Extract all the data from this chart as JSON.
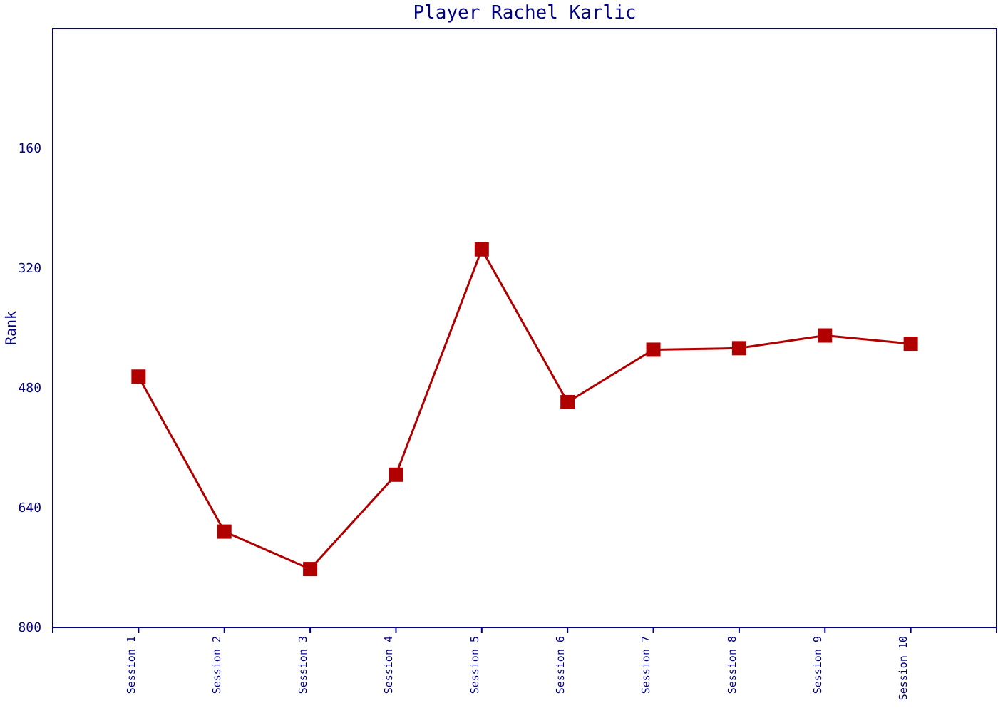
{
  "chart_data": {
    "type": "line",
    "title": "Player Rachel Karlic",
    "ylabel": "Rank",
    "categories": [
      "Session 1",
      "Session 2",
      "Session 3",
      "Session 4",
      "Session 5",
      "Session 6",
      "Session 7",
      "Session 8",
      "Session 9",
      "Session 10"
    ],
    "series": [
      {
        "color": "#b00000",
        "values": [
          465,
          672,
          722,
          596,
          295,
          499,
          429,
          427,
          410,
          421
        ]
      }
    ],
    "ylim": [
      800,
      0
    ],
    "yticks": [
      160,
      320,
      480,
      640,
      800
    ],
    "marker": "square",
    "line_style": "solid",
    "grid": false
  }
}
